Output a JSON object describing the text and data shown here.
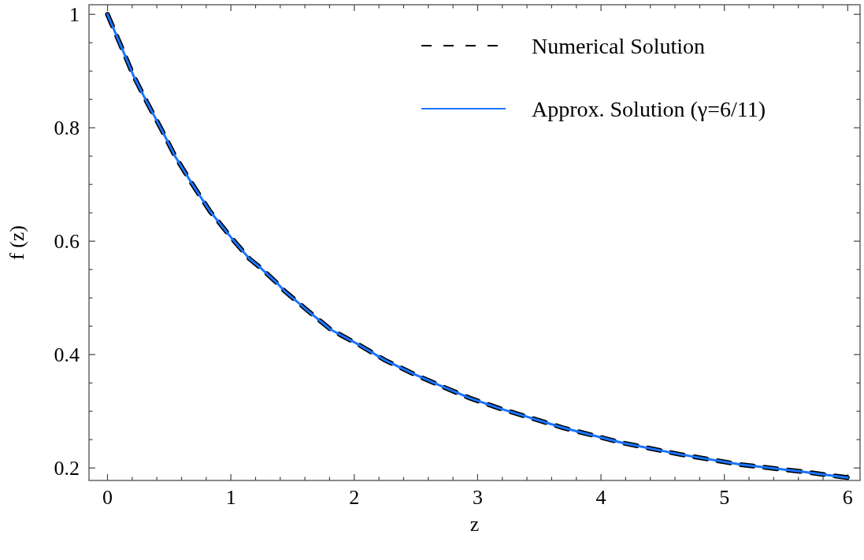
{
  "chart_data": {
    "type": "line",
    "xlabel": "z",
    "ylabel": "f (z)",
    "xlim": [
      -0.15,
      6.1
    ],
    "ylim": [
      0.178,
      1.017
    ],
    "xticks": [
      0,
      {
        "value": 0.2,
        "label": null
      },
      {
        "value": 0.4,
        "label": null
      },
      {
        "value": 0.6,
        "label": null
      },
      {
        "value": 0.8,
        "label": null
      },
      1,
      {
        "value": 1.2,
        "label": null
      },
      {
        "value": 1.4,
        "label": null
      },
      {
        "value": 1.6,
        "label": null
      },
      {
        "value": 1.8,
        "label": null
      },
      2,
      {
        "value": 2.2,
        "label": null
      },
      {
        "value": 2.4,
        "label": null
      },
      {
        "value": 2.6,
        "label": null
      },
      {
        "value": 2.8,
        "label": null
      },
      3,
      {
        "value": 3.2,
        "label": null
      },
      {
        "value": 3.4,
        "label": null
      },
      {
        "value": 3.6,
        "label": null
      },
      {
        "value": 3.8,
        "label": null
      },
      4,
      {
        "value": 4.2,
        "label": null
      },
      {
        "value": 4.4,
        "label": null
      },
      {
        "value": 4.6,
        "label": null
      },
      {
        "value": 4.8,
        "label": null
      },
      5,
      {
        "value": 5.2,
        "label": null
      },
      {
        "value": 5.4,
        "label": null
      },
      {
        "value": 5.6,
        "label": null
      },
      {
        "value": 5.8,
        "label": null
      },
      6
    ],
    "yticks": [
      0.2,
      {
        "value": 0.25,
        "label": null
      },
      {
        "value": 0.3,
        "label": null
      },
      {
        "value": 0.35,
        "label": null
      },
      0.4,
      {
        "value": 0.45,
        "label": null
      },
      {
        "value": 0.5,
        "label": null
      },
      {
        "value": 0.55,
        "label": null
      },
      0.6,
      {
        "value": 0.65,
        "label": null
      },
      {
        "value": 0.7,
        "label": null
      },
      {
        "value": 0.75,
        "label": null
      },
      0.8,
      {
        "value": 0.85,
        "label": null
      },
      {
        "value": 0.9,
        "label": null
      },
      {
        "value": 0.95,
        "label": null
      },
      1
    ],
    "x": [
      0,
      0.11,
      0.21,
      0.32,
      0.44,
      0.55,
      0.68,
      0.83,
      1.0,
      1.15,
      1.24,
      1.38,
      1.43,
      1.62,
      1.81,
      2.04,
      2.25,
      2.49,
      2.72,
      2.94,
      3.18,
      3.69,
      4.18,
      4.64,
      5.13,
      5.65,
      6.0
    ],
    "legend": "top right",
    "grid": false,
    "series": [
      {
        "name": "Numerical Solution",
        "color": "#000000",
        "line_style": "dashed",
        "values": [
          1.0,
          0.944,
          0.892,
          0.845,
          0.796,
          0.749,
          0.703,
          0.653,
          0.607,
          0.569,
          0.553,
          0.525,
          0.513,
          0.478,
          0.444,
          0.417,
          0.39,
          0.365,
          0.343,
          0.323,
          0.305,
          0.271,
          0.244,
          0.224,
          0.206,
          0.193,
          0.183
        ]
      },
      {
        "name": "Approx. Solution (γ=6/11)",
        "color": "#1a75ff",
        "line_style": "solid",
        "values": [
          1.0,
          0.944,
          0.892,
          0.845,
          0.796,
          0.749,
          0.703,
          0.653,
          0.607,
          0.569,
          0.553,
          0.525,
          0.513,
          0.478,
          0.444,
          0.417,
          0.39,
          0.365,
          0.343,
          0.323,
          0.305,
          0.271,
          0.244,
          0.224,
          0.206,
          0.193,
          0.183
        ]
      }
    ]
  }
}
